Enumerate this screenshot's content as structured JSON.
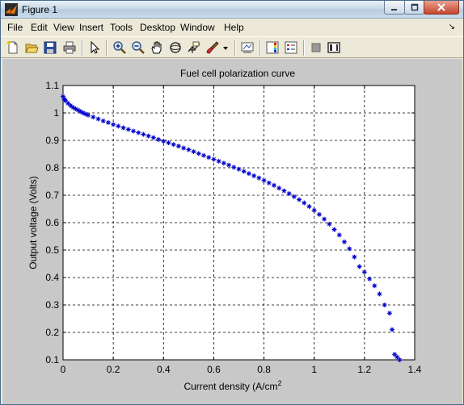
{
  "window": {
    "title": "Figure 1"
  },
  "menu": [
    "File",
    "Edit",
    "View",
    "Insert",
    "Tools",
    "Desktop",
    "Window",
    "Help"
  ],
  "toolbar_icons": [
    "new-figure-icon",
    "open-file-icon",
    "save-icon",
    "print-icon",
    "pointer-icon",
    "zoom-in-icon",
    "zoom-out-icon",
    "pan-hand-icon",
    "rotate-3d-icon",
    "data-cursor-icon",
    "brush-icon",
    "brush-dropdown-icon",
    "link-plot-icon",
    "colorbar-icon",
    "legend-icon",
    "hide-plot-tools-icon",
    "show-plot-tools-icon"
  ],
  "chart_data": {
    "type": "scatter",
    "title": "Fuel cell polarization curve",
    "xlabel": "Current density (A/cm",
    "xlabel_superscript": "2",
    "ylabel": "Output voltage (Volts)",
    "xlim": [
      0,
      1.4
    ],
    "ylim": [
      0.1,
      1.1
    ],
    "xticks": [
      "0",
      "0.2",
      "0.4",
      "0.6",
      "0.8",
      "1",
      "1.2",
      "1.4"
    ],
    "yticks": [
      "0.1",
      "0.2",
      "0.3",
      "0.4",
      "0.5",
      "0.6",
      "0.7",
      "0.8",
      "0.9",
      "1",
      "1.1"
    ],
    "grid": true,
    "marker": "*",
    "marker_color": "#0000cc",
    "series": [
      {
        "x": [
          0.0,
          0.005,
          0.01,
          0.02,
          0.03,
          0.04,
          0.05,
          0.06,
          0.07,
          0.08,
          0.09,
          0.1,
          0.12,
          0.14,
          0.16,
          0.18,
          0.2,
          0.22,
          0.24,
          0.26,
          0.28,
          0.3,
          0.32,
          0.34,
          0.36,
          0.38,
          0.4,
          0.42,
          0.44,
          0.46,
          0.48,
          0.5,
          0.52,
          0.54,
          0.56,
          0.58,
          0.6,
          0.62,
          0.64,
          0.66,
          0.68,
          0.7,
          0.72,
          0.74,
          0.76,
          0.78,
          0.8,
          0.82,
          0.84,
          0.86,
          0.88,
          0.9,
          0.92,
          0.94,
          0.96,
          0.98,
          1.0,
          1.02,
          1.04,
          1.06,
          1.08,
          1.1,
          1.12,
          1.14,
          1.16,
          1.18,
          1.2,
          1.22,
          1.24,
          1.26,
          1.28,
          1.3,
          1.31,
          1.32,
          1.33,
          1.34,
          1.35,
          1.36,
          1.37,
          1.38
        ],
        "y": [
          1.06,
          1.05,
          1.045,
          1.035,
          1.027,
          1.02,
          1.015,
          1.01,
          1.005,
          1.0,
          0.996,
          0.992,
          0.985,
          0.978,
          0.971,
          0.965,
          0.958,
          0.952,
          0.946,
          0.94,
          0.934,
          0.928,
          0.922,
          0.916,
          0.91,
          0.903,
          0.897,
          0.891,
          0.885,
          0.879,
          0.872,
          0.866,
          0.859,
          0.852,
          0.845,
          0.838,
          0.831,
          0.824,
          0.817,
          0.81,
          0.802,
          0.795,
          0.787,
          0.779,
          0.771,
          0.763,
          0.754,
          0.745,
          0.736,
          0.726,
          0.716,
          0.706,
          0.695,
          0.684,
          0.672,
          0.659,
          0.645,
          0.63,
          0.613,
          0.595,
          0.575,
          0.555,
          0.53,
          0.505,
          0.475,
          0.44,
          0.42,
          0.395,
          0.37,
          0.34,
          0.3,
          0.27,
          0.21,
          0.12,
          0.11,
          0.1,
          0.1,
          0.1,
          0.1,
          0.1
        ]
      }
    ]
  }
}
